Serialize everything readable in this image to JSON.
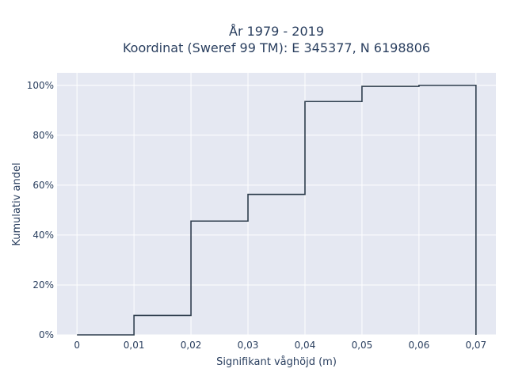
{
  "chart_data": {
    "type": "line",
    "line_shape": "step",
    "title_lines": [
      "År 1979 - 2019",
      "Koordinat (Sweref 99 TM): E 345377, N 6198806"
    ],
    "xlabel": "Signifikant våghöjd (m)",
    "ylabel": "Kumulativ andel",
    "x_ticks": [
      0,
      0.01,
      0.02,
      0.03,
      0.04,
      0.05,
      0.06,
      0.07
    ],
    "x_tick_labels": [
      "0",
      "0,01",
      "0,02",
      "0,03",
      "0,04",
      "0,05",
      "0,06",
      "0,07"
    ],
    "y_ticks": [
      0,
      20,
      40,
      60,
      80,
      100
    ],
    "y_tick_labels": [
      "0%",
      "20%",
      "40%",
      "60%",
      "80%",
      "100%"
    ],
    "xlim": [
      -0.0035,
      0.0735
    ],
    "ylim": [
      0,
      105
    ],
    "grid": true,
    "plot_bgcolor": "#e5e8f2",
    "line_color": "#2f3e4e",
    "series": [
      {
        "x": [
          0,
          0.01,
          0.02,
          0.03,
          0.04,
          0.05,
          0.06,
          0.07,
          0.07
        ],
        "y": [
          0,
          7.8,
          45.6,
          56.3,
          93.5,
          99.6,
          100,
          100,
          0
        ]
      }
    ]
  }
}
